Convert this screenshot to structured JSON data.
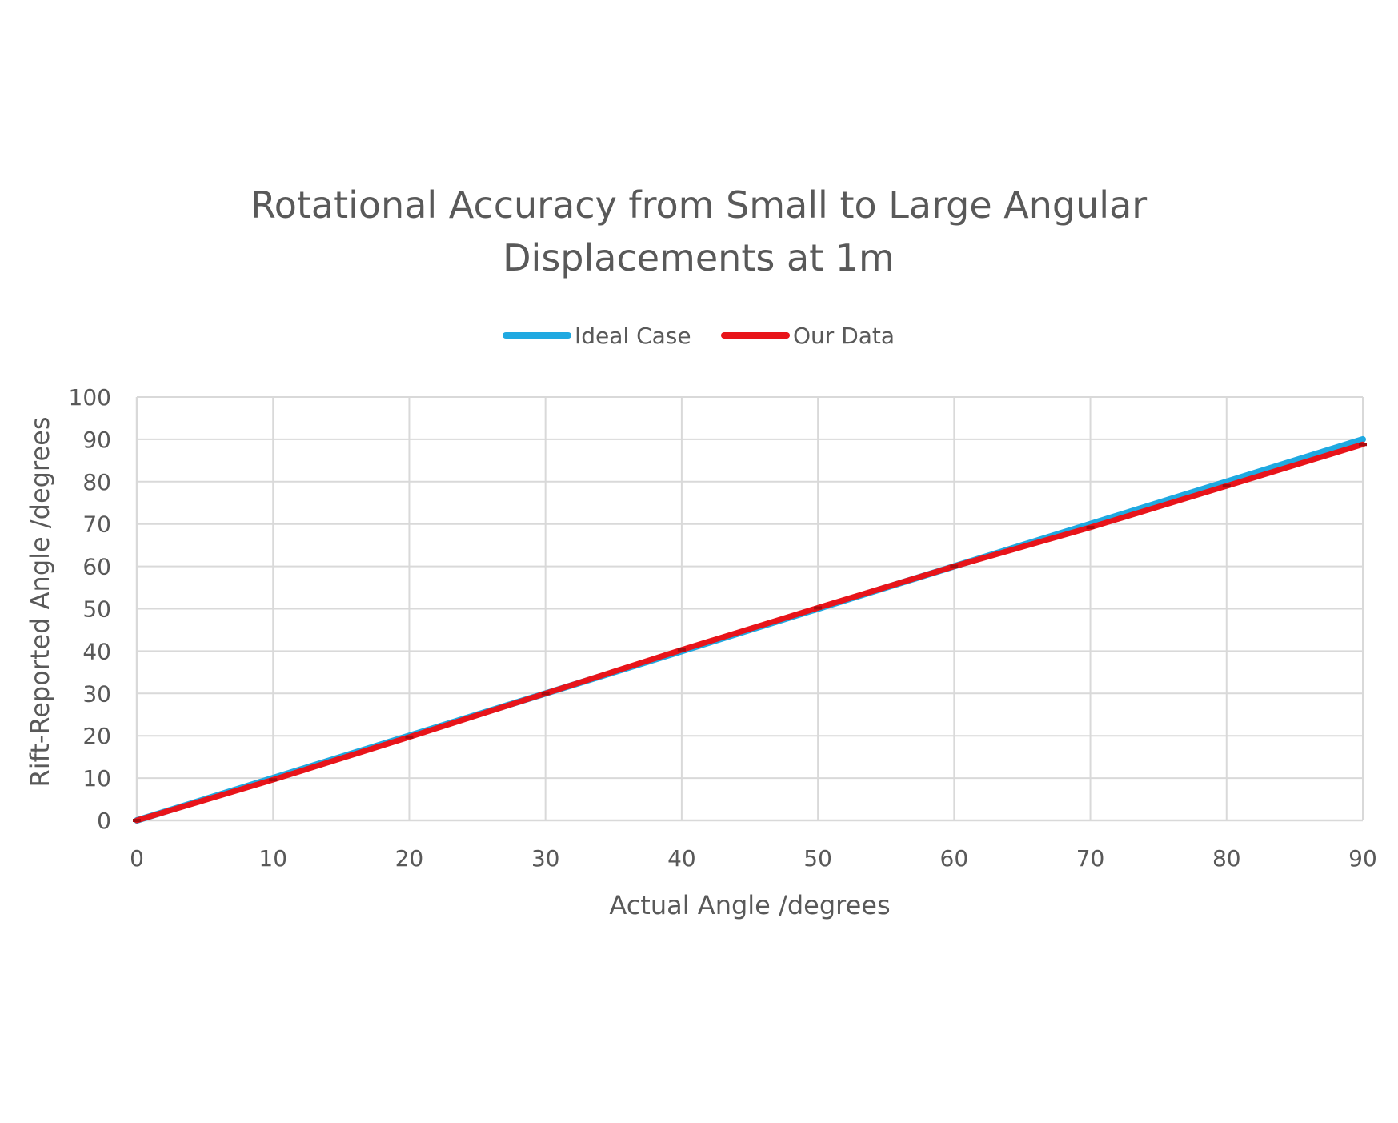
{
  "chart_data": {
    "type": "line",
    "title_lines": [
      "Rotational Accuracy from Small to Large Angular",
      "Displacements at 1m"
    ],
    "xlabel": "Actual Angle /degrees",
    "ylabel": "Rift-Reported Angle /degrees",
    "xlim": [
      0,
      90
    ],
    "ylim": [
      0,
      100
    ],
    "x_ticks": [
      "0",
      "10",
      "20",
      "30",
      "40",
      "50",
      "60",
      "70",
      "80",
      "90"
    ],
    "y_ticks": [
      "0",
      "10",
      "20",
      "30",
      "40",
      "50",
      "60",
      "70",
      "80",
      "90",
      "100"
    ],
    "grid": true,
    "legend_position": "top",
    "x": [
      0,
      10,
      20,
      30,
      40,
      50,
      60,
      70,
      80,
      90
    ],
    "series": [
      {
        "name": "Ideal Case",
        "color": "#1fa9e1",
        "values": [
          0,
          10,
          20,
          30,
          40,
          50,
          60,
          70,
          80,
          90
        ]
      },
      {
        "name": "Our Data",
        "color": "#e8141a",
        "values": [
          0,
          9.6,
          19.7,
          30.0,
          40.3,
          50.2,
          60.0,
          69.2,
          79.0,
          88.8
        ]
      }
    ]
  }
}
